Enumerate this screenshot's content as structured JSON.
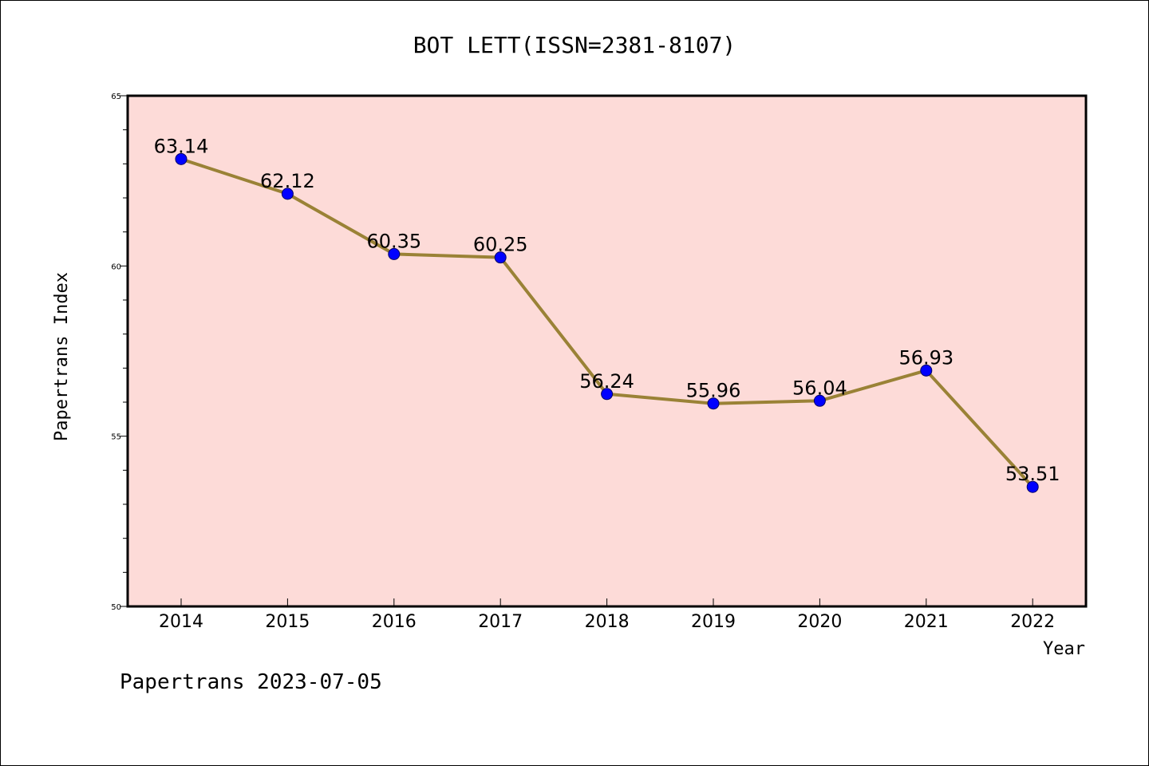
{
  "chart_data": {
    "type": "line",
    "title": "BOT LETT(ISSN=2381-8107)",
    "xlabel": "Year",
    "ylabel": "Papertrans Index",
    "categories": [
      "2014",
      "2015",
      "2016",
      "2017",
      "2018",
      "2019",
      "2020",
      "2021",
      "2022"
    ],
    "series": [
      {
        "values": [
          63.14,
          62.12,
          60.35,
          60.25,
          56.24,
          55.96,
          56.04,
          56.93,
          53.51
        ],
        "labels": [
          "63.14",
          "62.12",
          "60.35",
          "60.25",
          "56.24",
          "55.96",
          "56.04",
          "56.93",
          "53.51"
        ]
      }
    ],
    "ylim": [
      50,
      65
    ],
    "y_ticks": [
      "50",
      "55",
      "60",
      "65"
    ],
    "colors": {
      "plot_background": "#fddbd8",
      "line": "#9a8236",
      "marker": "#0000ff"
    },
    "grid": false
  },
  "footer": {
    "text": "Papertrans 2023-07-05"
  }
}
